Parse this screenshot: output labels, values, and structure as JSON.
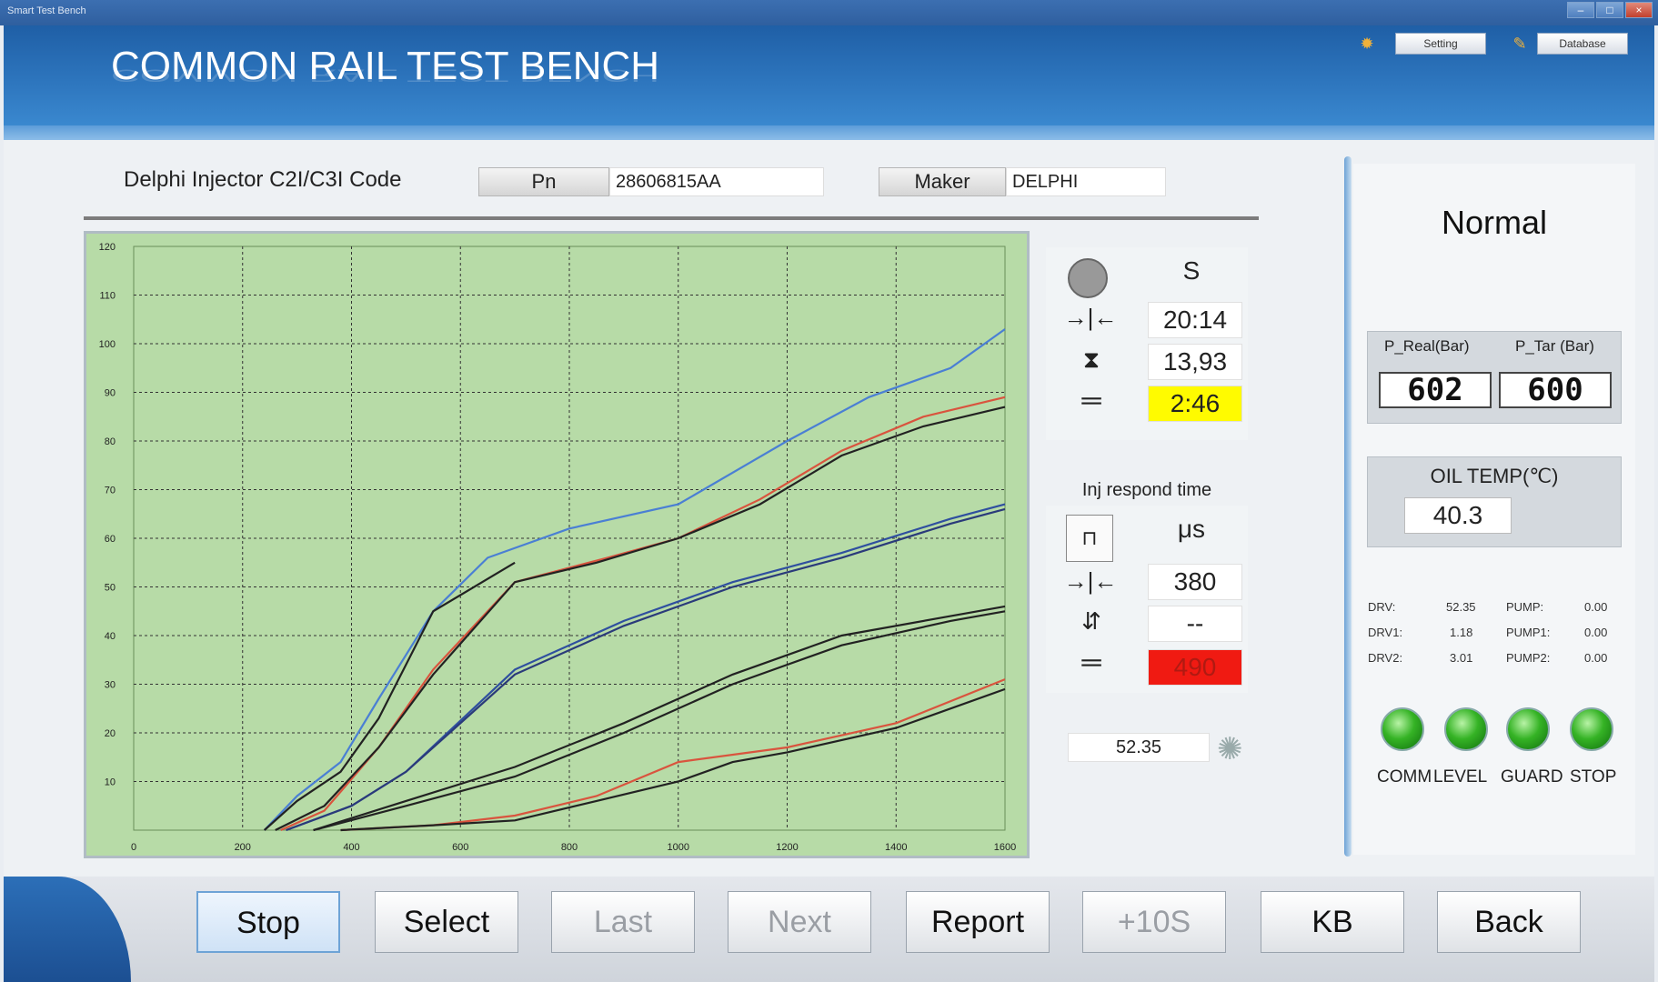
{
  "window": {
    "title": "Smart Test Bench"
  },
  "header": {
    "title": "COMMON RAIL TEST BENCH",
    "setting_label": "Setting",
    "database_label": "Database",
    "setting_icon": "gear-icon",
    "database_icon": "pencil-icon"
  },
  "injector": {
    "type_label": "Delphi Injector C2I/C3I Code",
    "pn_label": "Pn",
    "pn_value": "28606815AA",
    "maker_label": "Maker",
    "maker_value": "DELPHI"
  },
  "timer": {
    "unit": "S",
    "value1": "20:14",
    "value2": "13,93",
    "value3": "2:46"
  },
  "respond": {
    "title": "Inj respond time",
    "unit": "μs",
    "value1": "380",
    "value2": "--",
    "value3": "490",
    "readout": "52.35"
  },
  "status": {
    "mode": "Normal",
    "p_real_label": "P_Real(Bar)",
    "p_tar_label": "P_Tar (Bar)",
    "p_real_value": "602",
    "p_tar_value": "600",
    "oil_label": "OIL TEMP(℃)",
    "oil_value": "40.3",
    "drv_label": "DRV:",
    "drv_value": "52.35",
    "drv1_label": "DRV1:",
    "drv1_value": "1.18",
    "drv2_label": "DRV2:",
    "drv2_value": "3.01",
    "pump_label": "PUMP:",
    "pump_value": "0.00",
    "pump1_label": "PUMP1:",
    "pump1_value": "0.00",
    "pump2_label": "PUMP2:",
    "pump2_value": "0.00",
    "led_labels": [
      "COMM",
      "LEVEL",
      "GUARD",
      "STOP"
    ],
    "led_color": "#35b325"
  },
  "buttons": {
    "stop": "Stop",
    "select": "Select",
    "last": "Last",
    "next": "Next",
    "report": "Report",
    "plus10": "+10S",
    "kb": "KB",
    "back": "Back"
  },
  "chart_data": {
    "type": "line",
    "background": "#b7dba7",
    "grid": true,
    "xlim": [
      0,
      1600
    ],
    "ylim": [
      0,
      120
    ],
    "x_ticks": [
      0,
      200,
      400,
      600,
      800,
      1000,
      1200,
      1400,
      1600
    ],
    "y_ticks": [
      10,
      20,
      30,
      40,
      50,
      60,
      70,
      80,
      90,
      100,
      110,
      120
    ],
    "series": [
      {
        "color": "#4a7fd4",
        "points": [
          [
            240,
            0
          ],
          [
            300,
            7
          ],
          [
            380,
            14
          ],
          [
            450,
            27
          ],
          [
            550,
            45
          ],
          [
            650,
            56
          ],
          [
            800,
            62
          ],
          [
            1000,
            67
          ],
          [
            1200,
            80
          ],
          [
            1350,
            89
          ],
          [
            1500,
            95
          ],
          [
            1600,
            103
          ]
        ]
      },
      {
        "color": "#222222",
        "points": [
          [
            240,
            0
          ],
          [
            300,
            6
          ],
          [
            380,
            12
          ],
          [
            450,
            23
          ],
          [
            550,
            45
          ],
          [
            700,
            55
          ]
        ]
      },
      {
        "color": "#d9543e",
        "points": [
          [
            270,
            0
          ],
          [
            350,
            4
          ],
          [
            450,
            17
          ],
          [
            550,
            33
          ],
          [
            700,
            51
          ],
          [
            870,
            56
          ],
          [
            1000,
            60
          ],
          [
            1150,
            68
          ],
          [
            1300,
            78
          ],
          [
            1450,
            85
          ],
          [
            1600,
            89
          ]
        ]
      },
      {
        "color": "#222222",
        "points": [
          [
            260,
            0
          ],
          [
            350,
            5
          ],
          [
            450,
            17
          ],
          [
            550,
            32
          ],
          [
            700,
            51
          ],
          [
            850,
            55
          ],
          [
            1000,
            60
          ],
          [
            1150,
            67
          ],
          [
            1300,
            77
          ],
          [
            1450,
            83
          ],
          [
            1600,
            87
          ]
        ]
      },
      {
        "color": "#2f4f9f",
        "points": [
          [
            280,
            0
          ],
          [
            400,
            5
          ],
          [
            500,
            12
          ],
          [
            700,
            33
          ],
          [
            900,
            43
          ],
          [
            1100,
            51
          ],
          [
            1300,
            57
          ],
          [
            1500,
            64
          ],
          [
            1600,
            67
          ]
        ]
      },
      {
        "color": "#2a3a7a",
        "points": [
          [
            280,
            0
          ],
          [
            400,
            5
          ],
          [
            500,
            12
          ],
          [
            700,
            32
          ],
          [
            900,
            42
          ],
          [
            1100,
            50
          ],
          [
            1300,
            56
          ],
          [
            1500,
            63
          ],
          [
            1600,
            66
          ]
        ]
      },
      {
        "color": "#222222",
        "points": [
          [
            330,
            0
          ],
          [
            500,
            6
          ],
          [
            700,
            13
          ],
          [
            900,
            22
          ],
          [
            1100,
            32
          ],
          [
            1300,
            40
          ],
          [
            1500,
            44
          ],
          [
            1600,
            46
          ]
        ]
      },
      {
        "color": "#222222",
        "points": [
          [
            330,
            0
          ],
          [
            500,
            5
          ],
          [
            700,
            11
          ],
          [
            900,
            20
          ],
          [
            1100,
            30
          ],
          [
            1300,
            38
          ],
          [
            1500,
            43
          ],
          [
            1600,
            45
          ]
        ]
      },
      {
        "color": "#d9543e",
        "points": [
          [
            380,
            0
          ],
          [
            550,
            1
          ],
          [
            700,
            3
          ],
          [
            850,
            7
          ],
          [
            1000,
            14
          ],
          [
            1200,
            17
          ],
          [
            1400,
            22
          ],
          [
            1600,
            31
          ]
        ]
      },
      {
        "color": "#222222",
        "points": [
          [
            380,
            0
          ],
          [
            550,
            1
          ],
          [
            700,
            2
          ],
          [
            850,
            6
          ],
          [
            1000,
            10
          ],
          [
            1100,
            14
          ],
          [
            1200,
            16
          ],
          [
            1400,
            21
          ],
          [
            1600,
            29
          ]
        ]
      }
    ]
  }
}
